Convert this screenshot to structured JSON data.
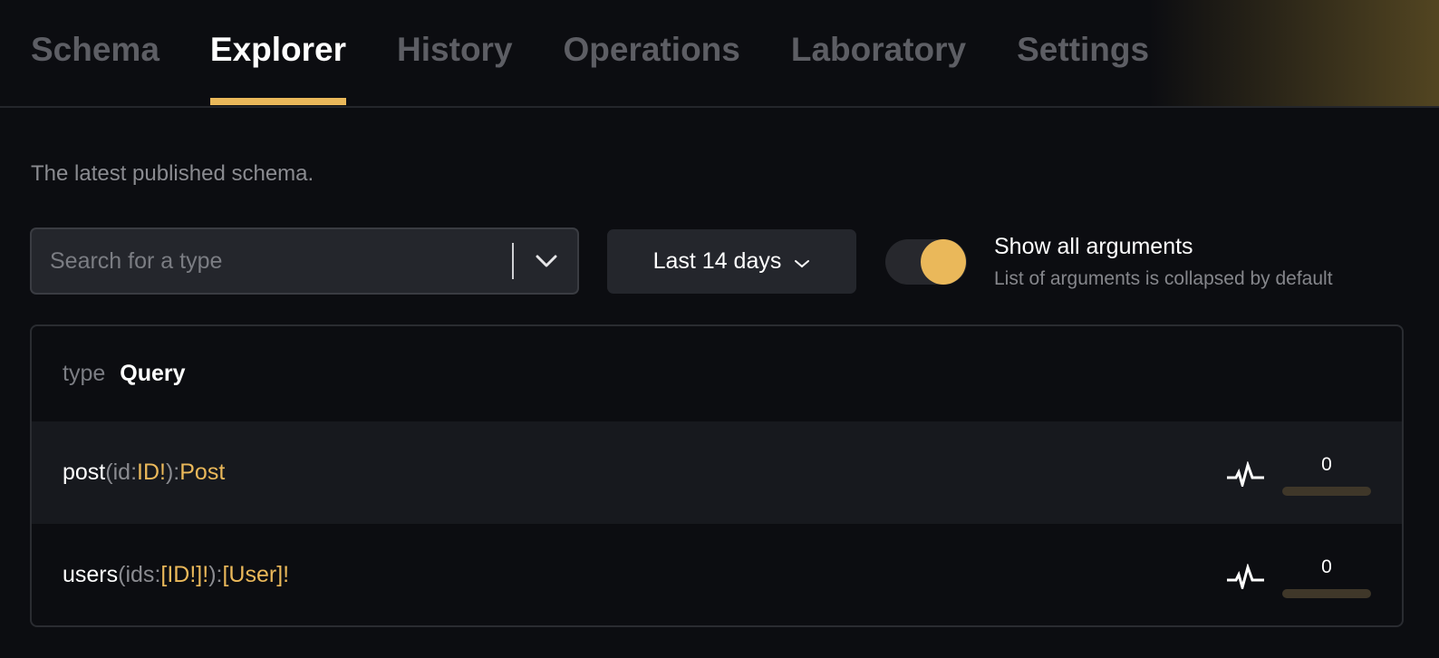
{
  "tabs": [
    {
      "label": "Schema"
    },
    {
      "label": "Explorer",
      "active": true
    },
    {
      "label": "History"
    },
    {
      "label": "Operations"
    },
    {
      "label": "Laboratory"
    },
    {
      "label": "Settings"
    }
  ],
  "subtitle": "The latest published schema.",
  "search": {
    "placeholder": "Search for a type",
    "value": ""
  },
  "range": {
    "label": "Last 14 days"
  },
  "toggle": {
    "label": "Show all arguments",
    "description": "List of arguments is collapsed by default",
    "on": true
  },
  "panel": {
    "keyword": "type",
    "type_name": "Query",
    "fields": [
      {
        "name": "post",
        "open": " (",
        "arg": "id",
        "colon": ": ",
        "arg_type": "ID!",
        "close": "): ",
        "type": "Post",
        "count": "0",
        "usage_fraction": 0
      },
      {
        "name": "users",
        "open": " (",
        "arg": "ids",
        "colon": ": ",
        "arg_type": "[ID!]!",
        "close": "): ",
        "type": "[User]!",
        "count": "0",
        "usage_fraction": 0
      }
    ]
  },
  "colors": {
    "accent": "#eab85a",
    "background": "#0c0d11"
  }
}
